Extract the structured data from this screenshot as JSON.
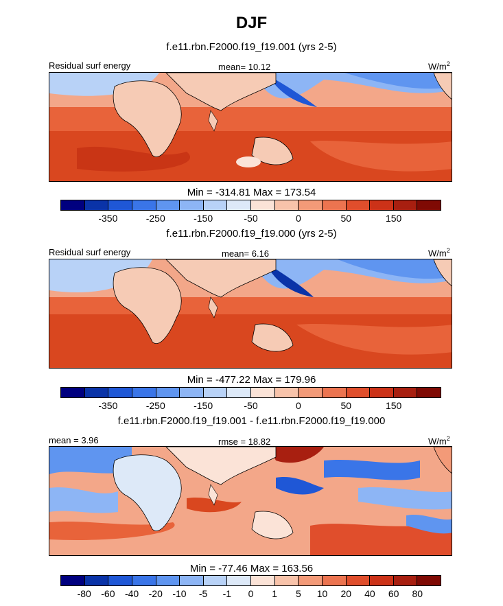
{
  "title": "DJF",
  "units_base": "W/m",
  "units_exp": "2",
  "panels": [
    {
      "subtitle": "f.e11.rbn.F2000.f19_f19.001 (yrs 2-5)",
      "left_label": "Residual surf energy",
      "center_label": "mean=  10.12",
      "minmax": "Min = -314.81 Max = 173.54",
      "ticks": [
        "-350",
        "-250",
        "-150",
        "-50",
        "0",
        "50",
        "150"
      ]
    },
    {
      "subtitle": "f.e11.rbn.F2000.f19_f19.000 (yrs 2-5)",
      "left_label": "Residual surf energy",
      "center_label": "mean=  6.16",
      "minmax": "Min = -477.22 Max = 179.96",
      "ticks": [
        "-350",
        "-250",
        "-150",
        "-50",
        "0",
        "50",
        "150"
      ]
    },
    {
      "subtitle": "f.e11.rbn.F2000.f19_f19.001 - f.e11.rbn.F2000.f19_f19.000",
      "left_label": "mean =   3.96",
      "center_label": "rmse =  18.82",
      "minmax": "Min = -77.46 Max = 163.56",
      "ticks": [
        "-80",
        "-60",
        "-40",
        "-20",
        "-10",
        "-5",
        "-1",
        "0",
        "1",
        "5",
        "10",
        "20",
        "40",
        "60",
        "80"
      ]
    }
  ],
  "colorbar_colors": [
    "#00007f",
    "#0a33a8",
    "#1f57d6",
    "#3a75e8",
    "#5f95f0",
    "#8db5f5",
    "#b8d2f7",
    "#dde9f8",
    "#fbe3d7",
    "#f8c3aa",
    "#f39a78",
    "#ec7450",
    "#e04e2c",
    "#cc3218",
    "#a81f10",
    "#7f0a04"
  ],
  "colors": {
    "ocean_warm": "#e8633a",
    "ocean_cool": "#7fa6ee",
    "land": "#f6cbb5",
    "deep_blue": "#1f57d6",
    "deep_red": "#c93515"
  }
}
